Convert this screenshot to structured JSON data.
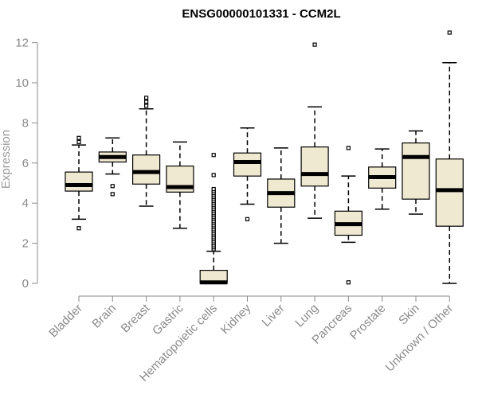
{
  "chart_data": {
    "type": "box",
    "title": "ENSG00000101331 - CCM2L",
    "xlabel": "",
    "ylabel": "Expression",
    "ylim": [
      0,
      12.4
    ],
    "yticks": [
      0,
      2,
      4,
      6,
      8,
      10,
      12
    ],
    "grid": false,
    "categories": [
      "Bladder",
      "Brain",
      "Breast",
      "Gastric",
      "Hematopoietic cells",
      "Kidney",
      "Liver",
      "Lung",
      "Pancreas",
      "Prostate",
      "Skin",
      "Unknown / Other"
    ],
    "boxes": [
      {
        "category": "Bladder",
        "whisker_low": 3.2,
        "q1": 4.6,
        "median": 4.9,
        "q3": 5.55,
        "whisker_high": 6.9,
        "outliers": [
          2.75,
          7.05,
          7.25
        ]
      },
      {
        "category": "Brain",
        "whisker_low": 5.45,
        "q1": 6.05,
        "median": 6.3,
        "q3": 6.55,
        "whisker_high": 7.25,
        "outliers": [
          4.45,
          4.85
        ]
      },
      {
        "category": "Breast",
        "whisker_low": 3.85,
        "q1": 4.95,
        "median": 5.55,
        "q3": 6.4,
        "whisker_high": 8.7,
        "outliers": [
          8.85,
          9.05,
          9.25
        ]
      },
      {
        "category": "Gastric",
        "whisker_low": 2.75,
        "q1": 4.55,
        "median": 4.8,
        "q3": 5.85,
        "whisker_high": 7.05,
        "outliers": []
      },
      {
        "category": "Hematopoietic cells",
        "whisker_low": 0,
        "q1": 0,
        "median": 0.05,
        "q3": 0.65,
        "whisker_high": 1.6,
        "outliers": [
          1.7,
          1.8,
          1.9,
          2.0,
          2.1,
          2.2,
          2.3,
          2.4,
          2.5,
          2.6,
          2.7,
          2.8,
          2.9,
          3.0,
          3.1,
          3.2,
          3.3,
          3.4,
          3.5,
          3.6,
          3.7,
          3.8,
          3.9,
          4.0,
          4.1,
          4.2,
          4.3,
          4.4,
          4.5,
          4.6,
          4.7,
          5.4,
          6.4
        ]
      },
      {
        "category": "Kidney",
        "whisker_low": 3.95,
        "q1": 5.35,
        "median": 6.05,
        "q3": 6.5,
        "whisker_high": 7.75,
        "outliers": [
          3.2
        ]
      },
      {
        "category": "Liver",
        "whisker_low": 2.0,
        "q1": 3.8,
        "median": 4.5,
        "q3": 5.2,
        "whisker_high": 6.75,
        "outliers": []
      },
      {
        "category": "Lung",
        "whisker_low": 3.25,
        "q1": 4.85,
        "median": 5.45,
        "q3": 6.8,
        "whisker_high": 8.8,
        "outliers": [
          11.9
        ]
      },
      {
        "category": "Pancreas",
        "whisker_low": 2.05,
        "q1": 2.4,
        "median": 2.95,
        "q3": 3.6,
        "whisker_high": 5.35,
        "outliers": [
          6.75,
          0.05
        ]
      },
      {
        "category": "Prostate",
        "whisker_low": 3.7,
        "q1": 4.75,
        "median": 5.3,
        "q3": 5.8,
        "whisker_high": 6.7,
        "outliers": []
      },
      {
        "category": "Skin",
        "whisker_low": 3.45,
        "q1": 4.2,
        "median": 6.3,
        "q3": 7.0,
        "whisker_high": 7.6,
        "outliers": []
      },
      {
        "category": "Unknown / Other",
        "whisker_low": 0,
        "q1": 2.85,
        "median": 4.65,
        "q3": 6.2,
        "whisker_high": 11.0,
        "outliers": [
          12.5
        ]
      }
    ],
    "colors": {
      "box_fill": "#efe9d2",
      "box_stroke": "#000000",
      "axis": "#8a8a8a",
      "ylabel": "#9a9a9a"
    }
  }
}
